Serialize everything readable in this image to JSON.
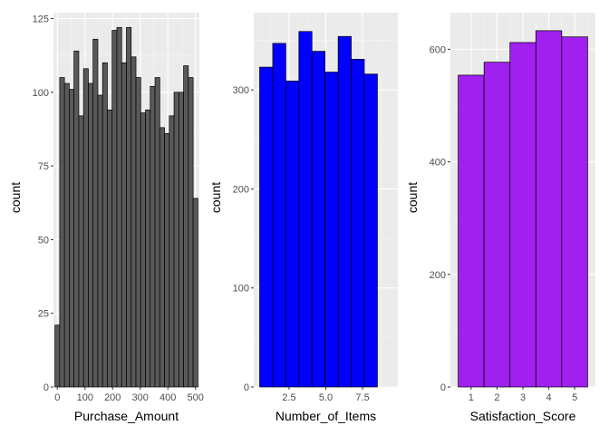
{
  "colors": {
    "panel_bg": "#ebebeb",
    "grid_major": "#ffffff",
    "grid_minor": "#f5f5f5",
    "bar_outline": "#000000"
  },
  "chart_data": [
    {
      "type": "histogram",
      "xlabel": "Purchase_Amount",
      "ylabel": "count",
      "fill": "#595959",
      "xlim": [
        -14,
        514
      ],
      "ylim": [
        0,
        127
      ],
      "xticks": [
        0,
        100,
        200,
        300,
        400,
        500
      ],
      "yticks": [
        0,
        25,
        50,
        75,
        100,
        125
      ],
      "bins": [
        {
          "x0": -8.6,
          "x1": 8.6,
          "count": 21
        },
        {
          "x0": 8.6,
          "x1": 25.9,
          "count": 105
        },
        {
          "x0": 25.9,
          "x1": 43.1,
          "count": 103
        },
        {
          "x0": 43.1,
          "x1": 60.3,
          "count": 101
        },
        {
          "x0": 60.3,
          "x1": 77.6,
          "count": 114
        },
        {
          "x0": 77.6,
          "x1": 94.8,
          "count": 92
        },
        {
          "x0": 94.8,
          "x1": 112.1,
          "count": 108
        },
        {
          "x0": 112.1,
          "x1": 129.3,
          "count": 103
        },
        {
          "x0": 129.3,
          "x1": 146.6,
          "count": 118
        },
        {
          "x0": 146.6,
          "x1": 163.8,
          "count": 99
        },
        {
          "x0": 163.8,
          "x1": 181.0,
          "count": 110
        },
        {
          "x0": 181.0,
          "x1": 198.3,
          "count": 94
        },
        {
          "x0": 198.3,
          "x1": 215.5,
          "count": 121
        },
        {
          "x0": 215.5,
          "x1": 232.8,
          "count": 122
        },
        {
          "x0": 232.8,
          "x1": 250.0,
          "count": 110
        },
        {
          "x0": 250.0,
          "x1": 267.2,
          "count": 122
        },
        {
          "x0": 267.2,
          "x1": 284.5,
          "count": 112
        },
        {
          "x0": 284.5,
          "x1": 301.7,
          "count": 105
        },
        {
          "x0": 301.7,
          "x1": 319.0,
          "count": 93
        },
        {
          "x0": 319.0,
          "x1": 336.2,
          "count": 94
        },
        {
          "x0": 336.2,
          "x1": 353.4,
          "count": 102
        },
        {
          "x0": 353.4,
          "x1": 370.7,
          "count": 105
        },
        {
          "x0": 370.7,
          "x1": 387.9,
          "count": 88
        },
        {
          "x0": 387.9,
          "x1": 405.2,
          "count": 86
        },
        {
          "x0": 405.2,
          "x1": 422.4,
          "count": 92
        },
        {
          "x0": 422.4,
          "x1": 439.7,
          "count": 100
        },
        {
          "x0": 439.7,
          "x1": 456.9,
          "count": 100
        },
        {
          "x0": 456.9,
          "x1": 474.1,
          "count": 109
        },
        {
          "x0": 474.1,
          "x1": 491.4,
          "count": 105
        },
        {
          "x0": 491.4,
          "x1": 508.6,
          "count": 64
        }
      ]
    },
    {
      "type": "histogram",
      "xlabel": "Number_of_Items",
      "ylabel": "count",
      "fill": "#0000ff",
      "xlim": [
        0.1,
        9.9
      ],
      "ylim": [
        0,
        378
      ],
      "xticks": [
        2.5,
        5.0,
        7.5
      ],
      "xtick_labels": [
        "2.5",
        "5.0",
        "7.5"
      ],
      "yticks": [
        0,
        100,
        200,
        300
      ],
      "bins": [
        {
          "x0": 0.5,
          "x1": 1.39,
          "count": 323
        },
        {
          "x0": 1.39,
          "x1": 2.28,
          "count": 347
        },
        {
          "x0": 2.28,
          "x1": 3.17,
          "count": 309
        },
        {
          "x0": 3.17,
          "x1": 4.06,
          "count": 359
        },
        {
          "x0": 4.06,
          "x1": 4.95,
          "count": 339
        },
        {
          "x0": 4.95,
          "x1": 5.84,
          "count": 318
        },
        {
          "x0": 5.84,
          "x1": 6.73,
          "count": 354
        },
        {
          "x0": 6.73,
          "x1": 7.62,
          "count": 331
        },
        {
          "x0": 7.62,
          "x1": 8.51,
          "count": 316
        }
      ]
    },
    {
      "type": "histogram",
      "xlabel": "Satisfaction_Score",
      "ylabel": "count",
      "fill": "#a020f0",
      "xlim": [
        0.2,
        5.8
      ],
      "ylim": [
        0,
        665
      ],
      "xticks": [
        1,
        2,
        3,
        4,
        5
      ],
      "yticks": [
        0,
        200,
        400,
        600
      ],
      "bins": [
        {
          "x0": 0.5,
          "x1": 1.5,
          "count": 554
        },
        {
          "x0": 1.5,
          "x1": 2.5,
          "count": 577
        },
        {
          "x0": 2.5,
          "x1": 3.5,
          "count": 612
        },
        {
          "x0": 3.5,
          "x1": 4.5,
          "count": 633
        },
        {
          "x0": 4.5,
          "x1": 5.5,
          "count": 622
        }
      ]
    }
  ]
}
